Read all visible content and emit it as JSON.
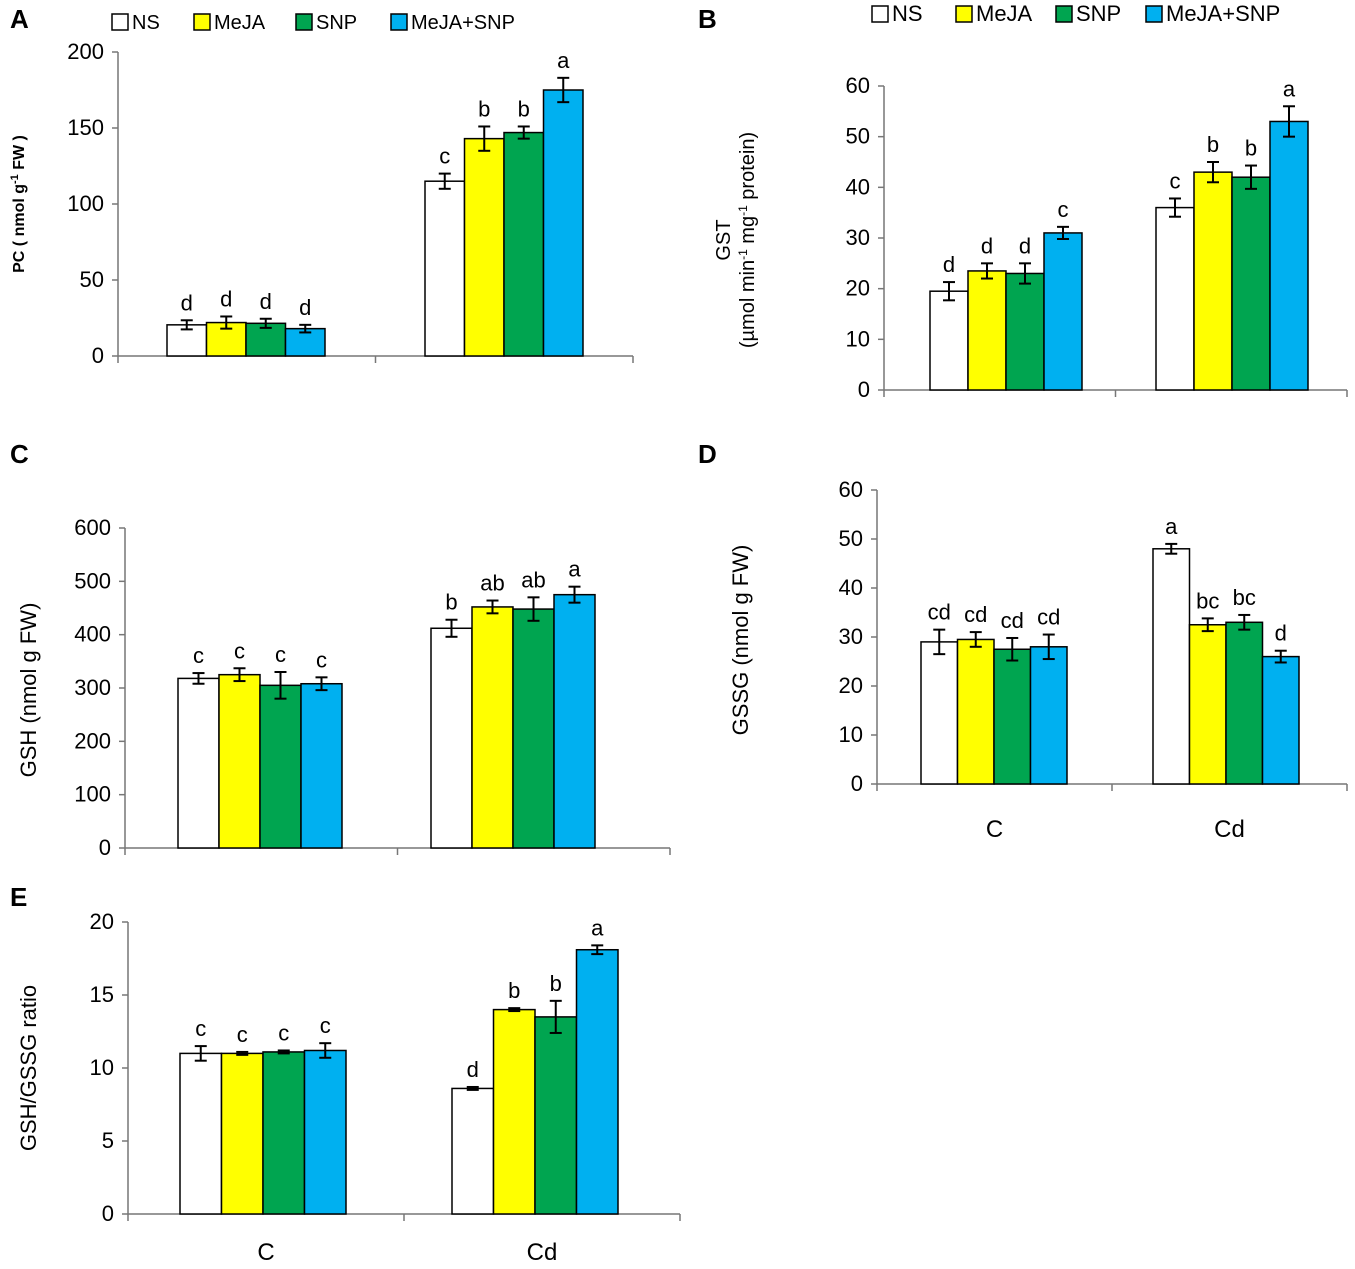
{
  "colors": {
    "NS": "#ffffff",
    "MeJA": "#ffff00",
    "SNP": "#00a550",
    "MeJA+SNP": "#00b0f0",
    "outline": "#000000"
  },
  "legend_entries": [
    "NS",
    "MeJA",
    "SNP",
    "MeJA+SNP"
  ],
  "chart_data": [
    {
      "panel": "A",
      "type": "bar",
      "categories": [
        "C",
        "Cd"
      ],
      "show_categories": false,
      "ylabel_parts": [
        "PC ( nmol g",
        "-1",
        " FW )"
      ],
      "ylim": [
        0,
        200
      ],
      "yticks": [
        0,
        50,
        100,
        150,
        200
      ],
      "legend": "top",
      "series": [
        {
          "name": "NS",
          "values": [
            20.5,
            115
          ],
          "errors": [
            3,
            5
          ],
          "labels": [
            "d",
            "c"
          ]
        },
        {
          "name": "MeJA",
          "values": [
            22,
            143
          ],
          "errors": [
            4,
            8
          ],
          "labels": [
            "d",
            "b"
          ]
        },
        {
          "name": "SNP",
          "values": [
            21.5,
            147
          ],
          "errors": [
            3,
            4
          ],
          "labels": [
            "d",
            "b"
          ]
        },
        {
          "name": "MeJA+SNP",
          "values": [
            18,
            175
          ],
          "errors": [
            2.5,
            8
          ],
          "labels": [
            "d",
            "a"
          ]
        }
      ]
    },
    {
      "panel": "B",
      "type": "bar",
      "categories": [
        "C",
        "Cd"
      ],
      "show_categories": false,
      "ylabel_parts": [
        "GST",
        "(µmol min",
        "-1",
        " mg",
        "-1",
        "  protein)"
      ],
      "ylim": [
        0,
        60
      ],
      "yticks": [
        0,
        10,
        20,
        30,
        40,
        50,
        60
      ],
      "legend": "top",
      "series": [
        {
          "name": "NS",
          "values": [
            19.5,
            36
          ],
          "errors": [
            1.8,
            1.8
          ],
          "labels": [
            "d",
            "c"
          ]
        },
        {
          "name": "MeJA",
          "values": [
            23.5,
            43
          ],
          "errors": [
            1.5,
            2.0
          ],
          "labels": [
            "d",
            "b"
          ]
        },
        {
          "name": "SNP",
          "values": [
            23,
            42
          ],
          "errors": [
            2.0,
            2.3
          ],
          "labels": [
            "d",
            "b"
          ]
        },
        {
          "name": "MeJA+SNP",
          "values": [
            31,
            53
          ],
          "errors": [
            1.2,
            3.0
          ],
          "labels": [
            "c",
            "a"
          ]
        }
      ]
    },
    {
      "panel": "C",
      "type": "bar",
      "categories": [
        "C",
        "Cd"
      ],
      "show_categories": false,
      "ylabel": "GSH (nmol g FW)",
      "ylim": [
        0,
        600
      ],
      "yticks": [
        0,
        100,
        200,
        300,
        400,
        500,
        600
      ],
      "series": [
        {
          "name": "NS",
          "values": [
            318,
            412
          ],
          "errors": [
            10,
            16
          ],
          "labels": [
            "c",
            "b"
          ]
        },
        {
          "name": "MeJA",
          "values": [
            325,
            452
          ],
          "errors": [
            12,
            12
          ],
          "labels": [
            "c",
            "ab"
          ]
        },
        {
          "name": "SNP",
          "values": [
            305,
            448
          ],
          "errors": [
            25,
            22
          ],
          "labels": [
            "c",
            "ab"
          ]
        },
        {
          "name": "MeJA+SNP",
          "values": [
            308,
            475
          ],
          "errors": [
            12,
            15
          ],
          "labels": [
            "c",
            "a"
          ]
        }
      ]
    },
    {
      "panel": "D",
      "type": "bar",
      "categories": [
        "C",
        "Cd"
      ],
      "show_categories": true,
      "ylabel": "GSSG (nmol g FW)",
      "ylim": [
        0,
        60
      ],
      "yticks": [
        0,
        10,
        20,
        30,
        40,
        50,
        60
      ],
      "series": [
        {
          "name": "NS",
          "values": [
            29,
            48
          ],
          "errors": [
            2.5,
            1
          ],
          "labels": [
            "cd",
            "a"
          ]
        },
        {
          "name": "MeJA",
          "values": [
            29.5,
            32.5
          ],
          "errors": [
            1.5,
            1.3
          ],
          "labels": [
            "cd",
            "bc"
          ]
        },
        {
          "name": "SNP",
          "values": [
            27.5,
            33
          ],
          "errors": [
            2.3,
            1.5
          ],
          "labels": [
            "cd",
            "bc"
          ]
        },
        {
          "name": "MeJA+SNP",
          "values": [
            28,
            26
          ],
          "errors": [
            2.5,
            1.2
          ],
          "labels": [
            "cd",
            "d"
          ]
        }
      ]
    },
    {
      "panel": "E",
      "type": "bar",
      "categories": [
        "C",
        "Cd"
      ],
      "show_categories": true,
      "ylabel": "GSH/GSSG ratio",
      "ylim": [
        0,
        20
      ],
      "yticks": [
        0,
        5,
        10,
        15,
        20
      ],
      "series": [
        {
          "name": "NS",
          "values": [
            11.0,
            8.6
          ],
          "errors": [
            0.5,
            0.1
          ],
          "labels": [
            "c",
            "d"
          ]
        },
        {
          "name": "MeJA",
          "values": [
            11.0,
            14.0
          ],
          "errors": [
            0.1,
            0.1
          ],
          "labels": [
            "c",
            "b"
          ]
        },
        {
          "name": "SNP",
          "values": [
            11.1,
            13.5
          ],
          "errors": [
            0.1,
            1.1
          ],
          "labels": [
            "c",
            "b"
          ]
        },
        {
          "name": "MeJA+SNP",
          "values": [
            11.2,
            18.1
          ],
          "errors": [
            0.5,
            0.3
          ],
          "labels": [
            "c",
            "a"
          ]
        }
      ]
    }
  ]
}
